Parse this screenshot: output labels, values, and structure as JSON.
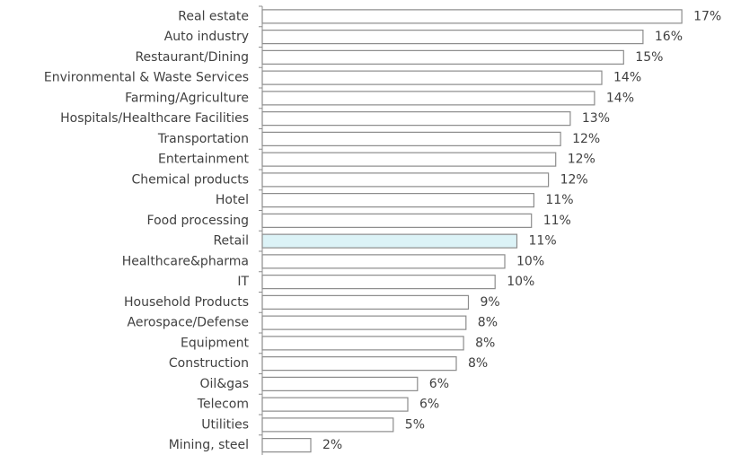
{
  "chart_data": {
    "type": "bar",
    "orientation": "horizontal",
    "categories": [
      "Real estate",
      "Auto industry",
      "Restaurant/Dining",
      "Environmental & Waste Services",
      "Farming/Agriculture",
      "Hospitals/Healthcare Facilities",
      "Transportation",
      "Entertainment",
      "Chemical products",
      "Hotel",
      "Food processing",
      "Retail",
      "Healthcare&pharma",
      "IT",
      "Household Products",
      "Aerospace/Defense",
      "Equipment",
      "Construction",
      "Oil&gas",
      "Telecom",
      "Utilities",
      "Mining, steel"
    ],
    "values": [
      17.3,
      15.7,
      14.9,
      14.0,
      13.7,
      12.7,
      12.3,
      12.1,
      11.8,
      11.2,
      11.1,
      10.5,
      10.0,
      9.6,
      8.5,
      8.4,
      8.3,
      8.0,
      6.4,
      6.0,
      5.4,
      2.0
    ],
    "value_labels": [
      "17%",
      "16%",
      "15%",
      "14%",
      "14%",
      "13%",
      "12%",
      "12%",
      "12%",
      "11%",
      "11%",
      "11%",
      "10%",
      "10%",
      "9%",
      "8%",
      "8%",
      "8%",
      "6%",
      "6%",
      "5%",
      "2%"
    ],
    "colors": [
      "#ffffff",
      "#ffffff",
      "#ffffff",
      "#ffffff",
      "#ffffff",
      "#ffffff",
      "#ffffff",
      "#ffffff",
      "#ffffff",
      "#ffffff",
      "#ffffff",
      "#dcf3f7",
      "#ffffff",
      "#ffffff",
      "#ffffff",
      "#ffffff",
      "#ffffff",
      "#ffffff",
      "#ffffff",
      "#ffffff",
      "#ffffff",
      "#ffffff"
    ],
    "xlim": [
      0,
      19
    ]
  }
}
